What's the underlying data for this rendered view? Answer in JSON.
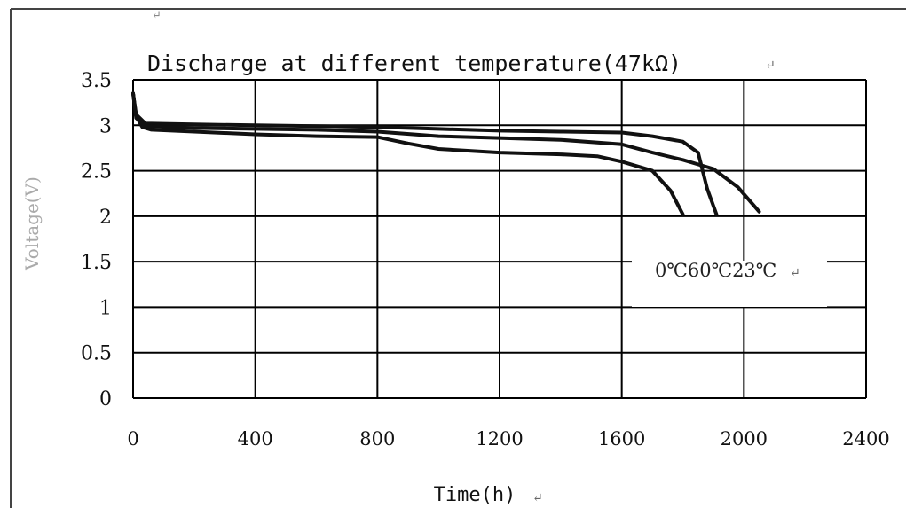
{
  "chart_data": {
    "type": "line",
    "title": "Discharge at different temperature(47kΩ)",
    "xlabel": "Time(h)",
    "ylabel": "Voltage(V)",
    "xlim": [
      0,
      2400
    ],
    "ylim": [
      0,
      3.5
    ],
    "x_ticks": [
      0,
      400,
      800,
      1200,
      1600,
      2000,
      2400
    ],
    "x_tick_labels": [
      "0",
      "400",
      "800",
      "1200",
      "1600",
      "2000",
      "2400"
    ],
    "y_ticks": [
      0,
      0.5,
      1,
      1.5,
      2,
      2.5,
      3,
      3.5
    ],
    "y_tick_labels": [
      "0",
      "0.5",
      "1",
      "1.5",
      "2",
      "2.5",
      "3",
      "3.5"
    ],
    "grid": true,
    "legend_text": "0℃60℃23℃",
    "line_color": "#111111",
    "series": [
      {
        "points": [
          [
            0,
            3.35
          ],
          [
            10,
            3.1
          ],
          [
            30,
            2.98
          ],
          [
            60,
            2.95
          ],
          [
            200,
            2.93
          ],
          [
            400,
            2.9
          ],
          [
            600,
            2.88
          ],
          [
            800,
            2.87
          ],
          [
            900,
            2.8
          ],
          [
            1000,
            2.74
          ],
          [
            1200,
            2.7
          ],
          [
            1400,
            2.68
          ],
          [
            1520,
            2.66
          ],
          [
            1600,
            2.6
          ],
          [
            1700,
            2.5
          ],
          [
            1760,
            2.28
          ],
          [
            1800,
            2.02
          ]
        ]
      },
      {
        "points": [
          [
            0,
            3.35
          ],
          [
            10,
            3.12
          ],
          [
            40,
            3.02
          ],
          [
            200,
            3.01
          ],
          [
            400,
            3.0
          ],
          [
            600,
            2.99
          ],
          [
            800,
            2.98
          ],
          [
            1000,
            2.96
          ],
          [
            1200,
            2.94
          ],
          [
            1400,
            2.93
          ],
          [
            1600,
            2.92
          ],
          [
            1700,
            2.88
          ],
          [
            1800,
            2.82
          ],
          [
            1850,
            2.7
          ],
          [
            1880,
            2.3
          ],
          [
            1910,
            2.02
          ]
        ]
      },
      {
        "points": [
          [
            0,
            3.35
          ],
          [
            10,
            3.08
          ],
          [
            40,
            2.99
          ],
          [
            200,
            2.97
          ],
          [
            400,
            2.96
          ],
          [
            600,
            2.95
          ],
          [
            800,
            2.93
          ],
          [
            1000,
            2.88
          ],
          [
            1200,
            2.86
          ],
          [
            1400,
            2.84
          ],
          [
            1600,
            2.79
          ],
          [
            1700,
            2.7
          ],
          [
            1800,
            2.62
          ],
          [
            1900,
            2.52
          ],
          [
            1980,
            2.32
          ],
          [
            2050,
            2.05
          ]
        ]
      }
    ]
  }
}
